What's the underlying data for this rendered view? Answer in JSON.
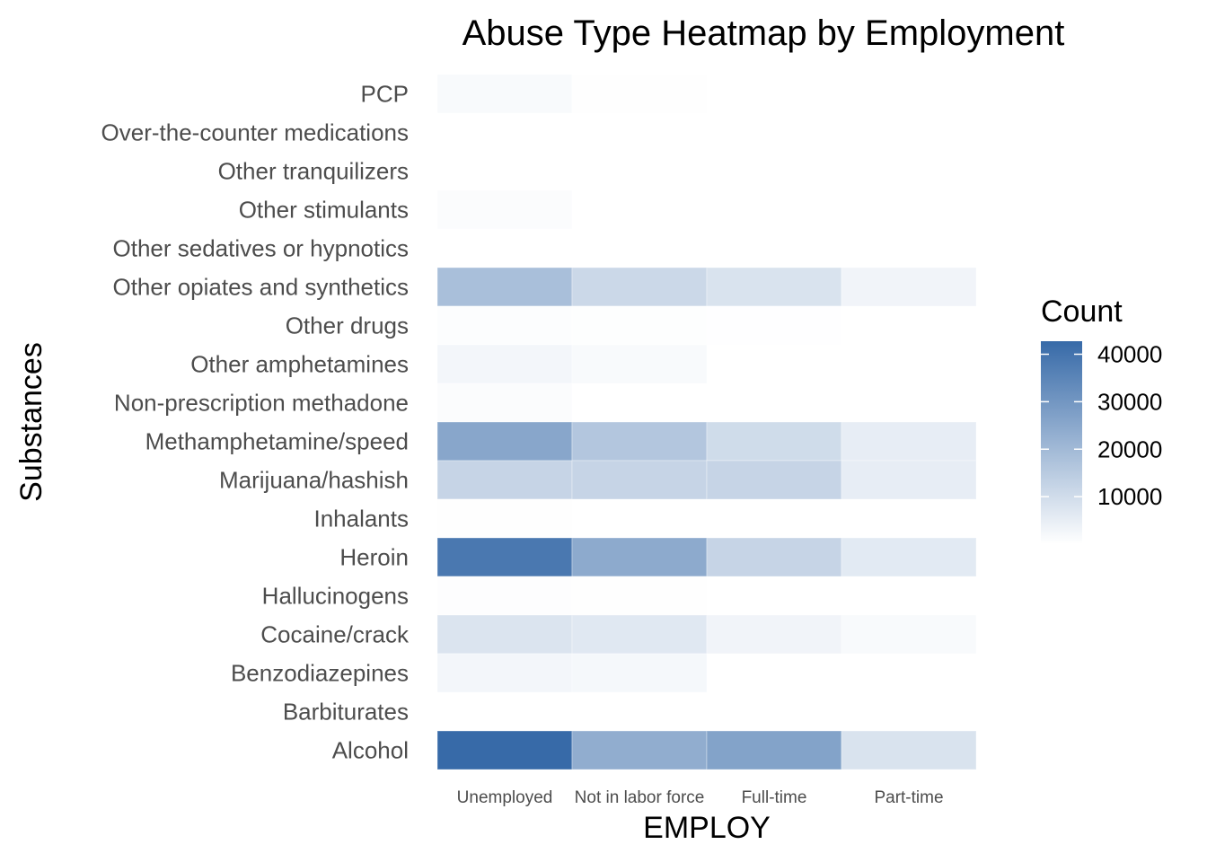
{
  "chart_data": {
    "type": "heatmap",
    "title": "Abuse Type Heatmap by Employment",
    "xlabel": "EMPLOY",
    "ylabel": "Substances",
    "x_categories": [
      "Unemployed",
      "Not in labor force",
      "Full-time",
      "Part-time"
    ],
    "y_categories": [
      "PCP",
      "Over-the-counter medications",
      "Other tranquilizers",
      "Other stimulants",
      "Other sedatives or hypnotics",
      "Other opiates and synthetics",
      "Other drugs",
      "Other amphetamines",
      "Non-prescription methadone",
      "Methamphetamine/speed",
      "Marijuana/hashish",
      "Inhalants",
      "Heroin",
      "Hallucinogens",
      "Cocaine/crack",
      "Benzodiazepines",
      "Barbiturates",
      "Alcohol"
    ],
    "values": [
      [
        1500,
        300,
        0,
        0
      ],
      [
        0,
        0,
        0,
        0
      ],
      [
        0,
        0,
        0,
        0
      ],
      [
        800,
        0,
        0,
        0
      ],
      [
        0,
        0,
        0,
        0
      ],
      [
        18000,
        11000,
        8000,
        3000
      ],
      [
        600,
        400,
        200,
        0
      ],
      [
        2500,
        1500,
        0,
        0
      ],
      [
        900,
        0,
        0,
        0
      ],
      [
        25000,
        16000,
        10000,
        5000
      ],
      [
        12000,
        12000,
        12000,
        5000
      ],
      [
        300,
        0,
        0,
        0
      ],
      [
        38000,
        24000,
        12000,
        6000
      ],
      [
        500,
        300,
        0,
        0
      ],
      [
        7500,
        6500,
        3000,
        1500
      ],
      [
        2500,
        2000,
        0,
        0
      ],
      [
        0,
        0,
        0,
        0
      ],
      [
        42000,
        23000,
        26000,
        8000
      ]
    ],
    "color_scale": {
      "low": "#ffffff",
      "high": "#376aa8",
      "min": 0,
      "max": 42000
    },
    "legend": {
      "title": "Count",
      "ticks": [
        10000,
        20000,
        30000,
        40000
      ],
      "position": "right"
    },
    "grid": false
  }
}
